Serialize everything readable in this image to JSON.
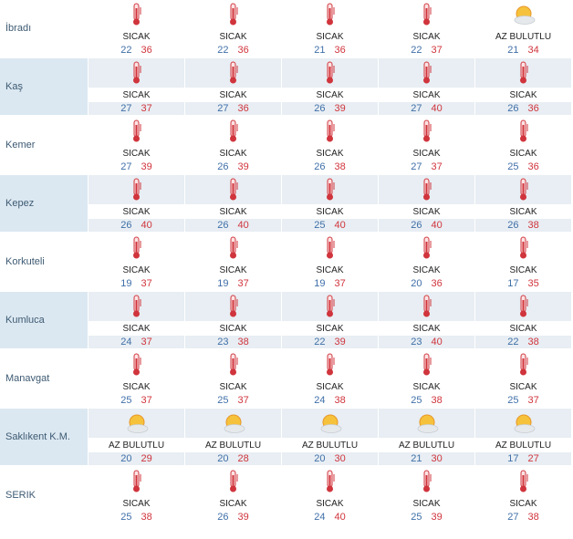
{
  "colors": {
    "min": "#3f6fa8",
    "max": "#d0343c",
    "shade": "#e8eef3",
    "name_shade": "#dce8f1"
  },
  "rows": [
    {
      "name": "İbradı",
      "days": [
        {
          "icon": "thermometer-icon",
          "label": "SICAK",
          "min": "22",
          "max": "36"
        },
        {
          "icon": "thermometer-icon",
          "label": "SICAK",
          "min": "22",
          "max": "36"
        },
        {
          "icon": "thermometer-icon",
          "label": "SICAK",
          "min": "21",
          "max": "36"
        },
        {
          "icon": "thermometer-icon",
          "label": "SICAK",
          "min": "22",
          "max": "37"
        },
        {
          "icon": "partly-cloudy-icon",
          "label": "AZ BULUTLU",
          "min": "21",
          "max": "34"
        }
      ]
    },
    {
      "name": "Kaş",
      "days": [
        {
          "icon": "thermometer-icon",
          "label": "SICAK",
          "min": "27",
          "max": "37"
        },
        {
          "icon": "thermometer-icon",
          "label": "SICAK",
          "min": "27",
          "max": "36"
        },
        {
          "icon": "thermometer-icon",
          "label": "SICAK",
          "min": "26",
          "max": "39"
        },
        {
          "icon": "thermometer-icon",
          "label": "SICAK",
          "min": "27",
          "max": "40"
        },
        {
          "icon": "thermometer-icon",
          "label": "SICAK",
          "min": "26",
          "max": "36"
        }
      ]
    },
    {
      "name": "Kemer",
      "days": [
        {
          "icon": "thermometer-icon",
          "label": "SICAK",
          "min": "27",
          "max": "39"
        },
        {
          "icon": "thermometer-icon",
          "label": "SICAK",
          "min": "26",
          "max": "39"
        },
        {
          "icon": "thermometer-icon",
          "label": "SICAK",
          "min": "26",
          "max": "38"
        },
        {
          "icon": "thermometer-icon",
          "label": "SICAK",
          "min": "27",
          "max": "37"
        },
        {
          "icon": "thermometer-icon",
          "label": "SICAK",
          "min": "25",
          "max": "36"
        }
      ]
    },
    {
      "name": "Kepez",
      "days": [
        {
          "icon": "thermometer-icon",
          "label": "SICAK",
          "min": "26",
          "max": "40"
        },
        {
          "icon": "thermometer-icon",
          "label": "SICAK",
          "min": "26",
          "max": "40"
        },
        {
          "icon": "thermometer-icon",
          "label": "SICAK",
          "min": "25",
          "max": "40"
        },
        {
          "icon": "thermometer-icon",
          "label": "SICAK",
          "min": "26",
          "max": "40"
        },
        {
          "icon": "thermometer-icon",
          "label": "SICAK",
          "min": "26",
          "max": "38"
        }
      ]
    },
    {
      "name": "Korkuteli",
      "days": [
        {
          "icon": "thermometer-icon",
          "label": "SICAK",
          "min": "19",
          "max": "37"
        },
        {
          "icon": "thermometer-icon",
          "label": "SICAK",
          "min": "19",
          "max": "37"
        },
        {
          "icon": "thermometer-icon",
          "label": "SICAK",
          "min": "19",
          "max": "37"
        },
        {
          "icon": "thermometer-icon",
          "label": "SICAK",
          "min": "20",
          "max": "36"
        },
        {
          "icon": "thermometer-icon",
          "label": "SICAK",
          "min": "17",
          "max": "35"
        }
      ]
    },
    {
      "name": "Kumluca",
      "days": [
        {
          "icon": "thermometer-icon",
          "label": "SICAK",
          "min": "24",
          "max": "37"
        },
        {
          "icon": "thermometer-icon",
          "label": "SICAK",
          "min": "23",
          "max": "38"
        },
        {
          "icon": "thermometer-icon",
          "label": "SICAK",
          "min": "22",
          "max": "39"
        },
        {
          "icon": "thermometer-icon",
          "label": "SICAK",
          "min": "23",
          "max": "40"
        },
        {
          "icon": "thermometer-icon",
          "label": "SICAK",
          "min": "22",
          "max": "38"
        }
      ]
    },
    {
      "name": "Manavgat",
      "days": [
        {
          "icon": "thermometer-icon",
          "label": "SICAK",
          "min": "25",
          "max": "37"
        },
        {
          "icon": "thermometer-icon",
          "label": "SICAK",
          "min": "25",
          "max": "37"
        },
        {
          "icon": "thermometer-icon",
          "label": "SICAK",
          "min": "24",
          "max": "38"
        },
        {
          "icon": "thermometer-icon",
          "label": "SICAK",
          "min": "25",
          "max": "38"
        },
        {
          "icon": "thermometer-icon",
          "label": "SICAK",
          "min": "25",
          "max": "37"
        }
      ]
    },
    {
      "name": "Saklıkent K.M.",
      "days": [
        {
          "icon": "partly-cloudy-icon",
          "label": "AZ BULUTLU",
          "min": "20",
          "max": "29"
        },
        {
          "icon": "partly-cloudy-icon",
          "label": "AZ BULUTLU",
          "min": "20",
          "max": "28"
        },
        {
          "icon": "partly-cloudy-icon",
          "label": "AZ BULUTLU",
          "min": "20",
          "max": "30"
        },
        {
          "icon": "partly-cloudy-icon",
          "label": "AZ BULUTLU",
          "min": "21",
          "max": "30"
        },
        {
          "icon": "partly-cloudy-icon",
          "label": "AZ BULUTLU",
          "min": "17",
          "max": "27"
        }
      ]
    },
    {
      "name": "SERIK",
      "days": [
        {
          "icon": "thermometer-icon",
          "label": "SICAK",
          "min": "25",
          "max": "38"
        },
        {
          "icon": "thermometer-icon",
          "label": "SICAK",
          "min": "26",
          "max": "39"
        },
        {
          "icon": "thermometer-icon",
          "label": "SICAK",
          "min": "24",
          "max": "40"
        },
        {
          "icon": "thermometer-icon",
          "label": "SICAK",
          "min": "25",
          "max": "39"
        },
        {
          "icon": "thermometer-icon",
          "label": "SICAK",
          "min": "27",
          "max": "38"
        }
      ]
    }
  ]
}
